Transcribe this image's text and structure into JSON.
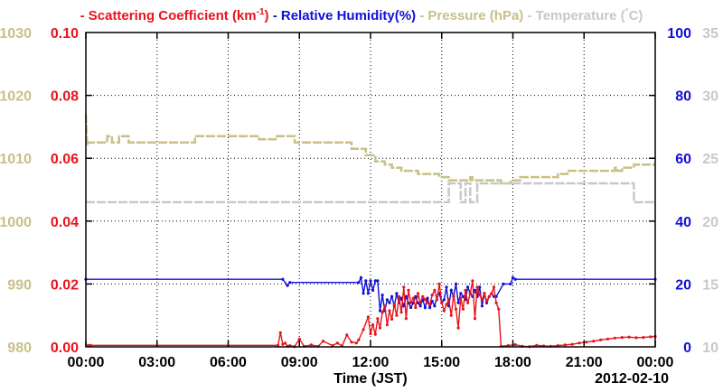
{
  "chart_data": {
    "type": "line",
    "x_date_label": "2012-02-10",
    "xlabel": "Time (JST)",
    "xticks": [
      "00:00",
      "03:00",
      "06:00",
      "09:00",
      "12:00",
      "15:00",
      "18:00",
      "21:00",
      "00:00"
    ],
    "xlim_hours": [
      0,
      24
    ],
    "grid": true,
    "legend": [
      {
        "name": "Scattering Coefficient (km",
        "sup": "-1",
        "suffix": ")",
        "color": "#e8141c"
      },
      {
        "name": "Relative Humidity(%)",
        "color": "#1010d8"
      },
      {
        "name": "Pressure (hPa)",
        "color": "#c8c088"
      },
      {
        "name": "Temperature (",
        "deg": "°",
        "suffix": "C)",
        "color": "#c8c8c8"
      }
    ],
    "axes": {
      "pressure": {
        "color": "#c8c088",
        "ylim": [
          980,
          1030
        ],
        "ticks": [
          "980",
          "990",
          "1000",
          "1010",
          "1020",
          "1030"
        ]
      },
      "scattering": {
        "color": "#e8141c",
        "ylim": [
          0,
          0.1
        ],
        "ticks": [
          "0.00",
          "0.02",
          "0.04",
          "0.06",
          "0.08",
          "0.10"
        ]
      },
      "humidity": {
        "color": "#1010d8",
        "ylim": [
          0,
          100
        ],
        "ticks": [
          "0",
          "20",
          "40",
          "60",
          "80",
          "100"
        ]
      },
      "temperature": {
        "color": "#c8c8c8",
        "ylim": [
          10,
          35
        ],
        "ticks": [
          "10",
          "15",
          "20",
          "25",
          "30",
          "35"
        ]
      }
    },
    "series": [
      {
        "name": "Pressure (hPa)",
        "axis": "pressure",
        "color": "#c8c088",
        "x": [
          0,
          0.05,
          0.1,
          0.9,
          0.9,
          1.1,
          1.1,
          1.4,
          1.4,
          1.8,
          1.8,
          4.6,
          4.6,
          7.3,
          7.3,
          8.0,
          8.0,
          8.8,
          8.8,
          11.2,
          11.2,
          11.8,
          11.8,
          12.2,
          12.2,
          12.6,
          12.6,
          12.9,
          12.9,
          13.3,
          13.3,
          14.0,
          14.0,
          14.9,
          14.9,
          15.3,
          15.3,
          16.2,
          16.2,
          16.3,
          16.3,
          17.5,
          17.5,
          17.9,
          17.9,
          18.3,
          18.3,
          19.9,
          19.9,
          20.3,
          20.3,
          22.3,
          22.3,
          22.4,
          22.4,
          22.6,
          22.6,
          23.1,
          23.1,
          24
        ],
        "y": [
          1017,
          1012,
          1012.5,
          1012.5,
          1013.5,
          1013.5,
          1012.5,
          1012.5,
          1013.5,
          1013.5,
          1012.5,
          1012.5,
          1013.5,
          1013.5,
          1013,
          1013,
          1013.5,
          1013.5,
          1012.5,
          1012.5,
          1011.5,
          1011.5,
          1010.5,
          1010.5,
          1009.5,
          1009.5,
          1009,
          1009,
          1008.5,
          1008.5,
          1008,
          1008,
          1007.5,
          1007.5,
          1007,
          1007,
          1006.5,
          1006.5,
          1007,
          1007,
          1006.5,
          1006.5,
          1006,
          1006,
          1006.5,
          1006.5,
          1007,
          1007,
          1007.5,
          1007.5,
          1008,
          1008,
          1008.5,
          1008.5,
          1008,
          1008,
          1008.5,
          1008.5,
          1009,
          1009
        ]
      },
      {
        "name": "Temperature (°C)",
        "axis": "temperature",
        "color": "#c8c8c8",
        "x": [
          0,
          15.3,
          15.3,
          15.8,
          15.8,
          16.0,
          16.0,
          16.2,
          16.2,
          16.5,
          16.5,
          17.0,
          17.0,
          23.1,
          23.1,
          24
        ],
        "y": [
          21.5,
          21.5,
          23.0,
          23.0,
          21.5,
          21.5,
          23.0,
          23.0,
          21.5,
          21.5,
          23.0,
          23.0,
          23.0,
          23.0,
          21.5,
          21.5
        ]
      },
      {
        "name": "Relative Humidity(%)",
        "axis": "humidity",
        "color": "#1010d8",
        "x": [
          0,
          8.3,
          8.5,
          8.6,
          11.5,
          11.6,
          11.7,
          11.8,
          11.9,
          12.0,
          12.1,
          12.2,
          12.3,
          12.4,
          12.5,
          12.6,
          12.7,
          12.8,
          12.9,
          13.0,
          13.1,
          13.2,
          13.3,
          13.4,
          13.5,
          13.6,
          13.7,
          13.8,
          13.9,
          14.0,
          14.1,
          14.2,
          14.3,
          14.4,
          14.5,
          14.6,
          14.7,
          14.8,
          14.9,
          15.0,
          15.1,
          15.2,
          15.3,
          15.4,
          15.5,
          15.6,
          15.7,
          15.8,
          15.9,
          16.0,
          16.1,
          16.2,
          16.3,
          16.4,
          16.5,
          16.6,
          16.7,
          16.8,
          16.9,
          17.0,
          17.1,
          17.2,
          17.3,
          17.6,
          17.9,
          18.0,
          18.1,
          24
        ],
        "y": [
          21.5,
          21.5,
          19.5,
          20.5,
          20.5,
          22,
          17,
          21,
          17,
          21,
          18,
          21,
          21,
          11.5,
          16.5,
          11.5,
          15,
          14,
          16,
          13,
          17,
          14,
          15.5,
          13,
          16,
          14,
          12.5,
          14,
          16,
          14,
          13,
          15,
          12.5,
          15.5,
          12.5,
          14.5,
          13,
          16,
          17,
          14,
          15,
          19,
          13,
          18,
          16,
          20,
          14,
          17,
          16,
          15,
          19,
          17,
          16,
          18,
          16,
          19,
          13,
          17,
          14,
          16,
          17,
          16,
          16,
          20,
          20,
          22,
          21.5,
          21.5
        ]
      },
      {
        "name": "Scattering Coefficient (km-1)",
        "axis": "scattering",
        "color": "#e8141c",
        "x": [
          0.1,
          0.2,
          8.1,
          8.2,
          8.3,
          8.4,
          8.5,
          8.6,
          8.8,
          9.0,
          9.2,
          9.5,
          9.8,
          10.0,
          10.4,
          10.6,
          10.8,
          11.0,
          11.2,
          11.4,
          11.5,
          11.7,
          11.9,
          12.0,
          12.1,
          12.2,
          12.3,
          12.4,
          12.5,
          12.6,
          12.7,
          12.8,
          12.9,
          13.0,
          13.1,
          13.2,
          13.3,
          13.4,
          13.5,
          13.6,
          13.7,
          13.8,
          13.9,
          14.0,
          14.1,
          14.2,
          14.3,
          14.4,
          14.5,
          14.6,
          14.7,
          14.8,
          14.9,
          15.0,
          15.1,
          15.2,
          15.3,
          15.4,
          15.5,
          15.6,
          15.7,
          15.8,
          15.9,
          16.0,
          16.1,
          16.2,
          16.3,
          16.4,
          16.5,
          16.6,
          16.7,
          16.8,
          16.9,
          17.0,
          17.1,
          17.2,
          17.3,
          17.4,
          17.5,
          17.8,
          18.1,
          18.4,
          18.7,
          19.0,
          19.3,
          19.6,
          19.9,
          20.2,
          20.5,
          20.8,
          21.1,
          21.4,
          21.7,
          22.0,
          22.3,
          22.6,
          22.9,
          23.2,
          23.5,
          23.8,
          24
        ],
        "y": [
          0.0005,
          0.0005,
          0.0005,
          0.0045,
          0.0008,
          0.0012,
          0.0002,
          0.0004,
          0.0001,
          0.0025,
          0.0002,
          0.0006,
          0.0002,
          0.0018,
          0.0004,
          0.0012,
          0.0003,
          0.0038,
          0.0015,
          0.0012,
          0.0022,
          0.0055,
          0.0095,
          0.0042,
          0.007,
          0.004,
          0.009,
          0.006,
          0.011,
          0.013,
          0.007,
          0.0115,
          0.0088,
          0.0135,
          0.01,
          0.016,
          0.011,
          0.019,
          0.009,
          0.018,
          0.014,
          0.0155,
          0.0125,
          0.017,
          0.014,
          0.016,
          0.015,
          0.014,
          0.0135,
          0.0165,
          0.018,
          0.015,
          0.02,
          0.014,
          0.0115,
          0.0135,
          0.015,
          0.01,
          0.0165,
          0.012,
          0.006,
          0.0155,
          0.012,
          0.018,
          0.014,
          0.017,
          0.021,
          0.009,
          0.019,
          0.0165,
          0.015,
          0.017,
          0.0145,
          0.016,
          0.017,
          0.019,
          0.014,
          0.012,
          0.0002,
          0.0004,
          0.0007,
          0.0002,
          0.0001,
          0.0005,
          0.0003,
          0.0002,
          0.0004,
          0.0006,
          0.0008,
          0.0012,
          0.0015,
          0.0018,
          0.0022,
          0.0025,
          0.0028,
          0.003,
          0.0031,
          0.0029,
          0.003,
          0.0032,
          0.0033
        ]
      }
    ]
  }
}
